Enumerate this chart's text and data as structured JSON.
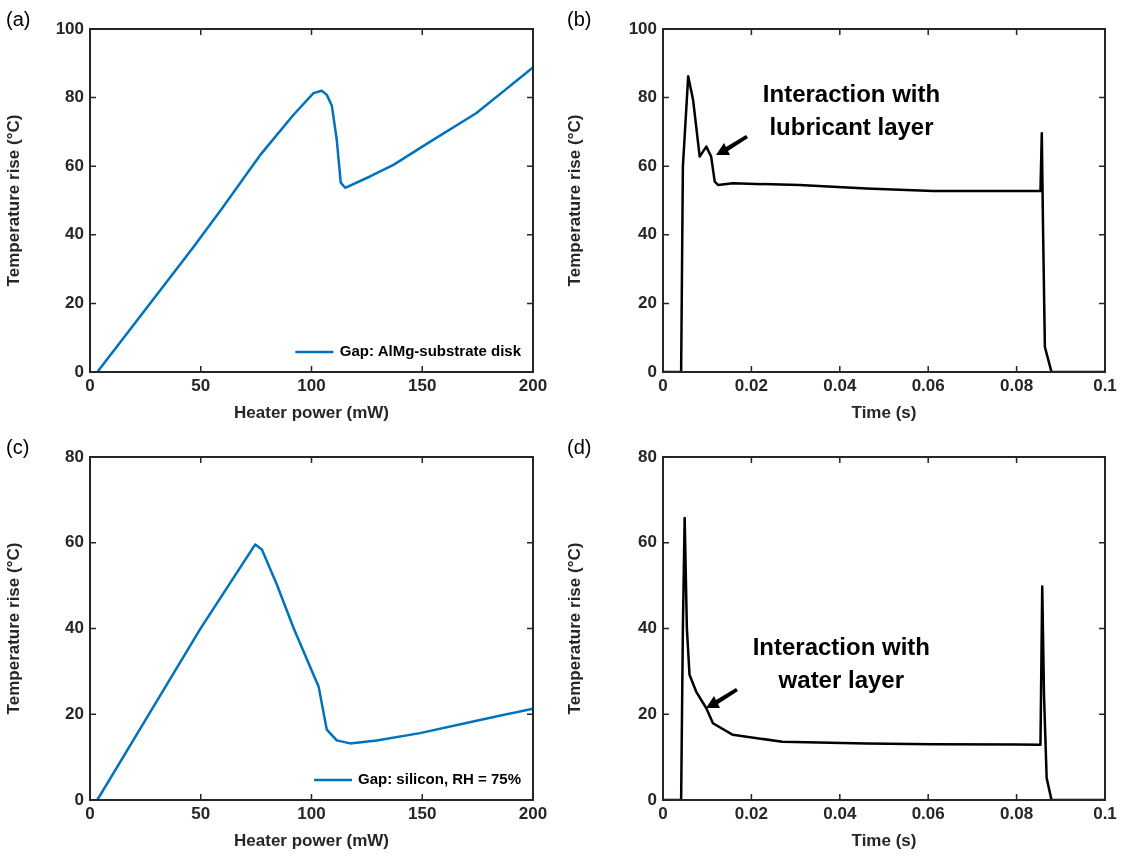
{
  "chart_data": [
    {
      "type": "line",
      "title": "(a)",
      "xlabel": "Heater power (mW)",
      "ylabel": "Temperature rise (°C)",
      "legend": "bottom right",
      "grid": false,
      "x": [
        3.3,
        20,
        46.8,
        60,
        76.9,
        91.9,
        100.9,
        104.6,
        106.9,
        109.2,
        111.4,
        113.2,
        115.2,
        126.4,
        137,
        152,
        174.5,
        200
      ],
      "series": [
        {
          "name": "Gap: AlMg-substrate disk",
          "color": "#0072bd",
          "values": [
            0,
            14,
            36.5,
            48,
            63.3,
            75,
            81.3,
            82,
            80.8,
            77.6,
            67.7,
            55.2,
            53.7,
            57,
            60.4,
            66.5,
            75.5,
            88.8
          ]
        }
      ],
      "xlim": [
        0,
        200
      ],
      "xticks": [
        0,
        50,
        100,
        150,
        200
      ],
      "ylim": [
        0,
        100
      ],
      "yticks": [
        0,
        20,
        40,
        60,
        80,
        100
      ]
    },
    {
      "type": "line",
      "title": "(b)",
      "xlabel": "Time (s)",
      "ylabel": "Temperature rise (°C)",
      "grid": false,
      "x": [
        0,
        0.0041,
        0.0045,
        0.0057,
        0.0068,
        0.0083,
        0.0098,
        0.0109,
        0.0117,
        0.0125,
        0.0158,
        0.0309,
        0.046,
        0.0611,
        0.0762,
        0.0854,
        0.0857,
        0.086,
        0.0864,
        0.0872,
        0.0879,
        0.1
      ],
      "series": [
        {
          "color": "#000000",
          "values": [
            0,
            0,
            59.9,
            86.2,
            79.4,
            62.8,
            65.7,
            62.8,
            55.5,
            54.5,
            55,
            54.5,
            53.5,
            52.8,
            52.8,
            52.8,
            69.6,
            40.4,
            7.3,
            3.4,
            0,
            0
          ]
        }
      ],
      "xlim": [
        0,
        0.1
      ],
      "xticks": [
        0,
        0.02,
        0.04,
        0.06,
        0.08,
        0.1
      ],
      "ylim": [
        0,
        100
      ],
      "yticks": [
        0,
        20,
        40,
        60,
        80,
        100
      ],
      "annotations": [
        {
          "text": "Interaction with lubricant layer",
          "x": 0.0121,
          "y": 63.3
        }
      ]
    },
    {
      "type": "line",
      "title": "(c)",
      "xlabel": "Heater power (mW)",
      "ylabel": "Temperature rise (°C)",
      "legend": "bottom right",
      "grid": false,
      "x": [
        3.3,
        49.8,
        74.6,
        77.6,
        84.4,
        91.9,
        100.9,
        103.2,
        106.9,
        111.4,
        117.4,
        129.4,
        149,
        174.5,
        200
      ],
      "series": [
        {
          "name": "Gap: silicon, RH = 75%",
          "color": "#0072bd",
          "values": [
            0,
            39.9,
            59.6,
            58.4,
            50.2,
            40.1,
            29.2,
            26.5,
            16.4,
            13.9,
            13.2,
            13.9,
            15.6,
            18.5,
            21.3
          ]
        }
      ],
      "xlim": [
        0,
        200
      ],
      "xticks": [
        0,
        50,
        100,
        150,
        200
      ],
      "ylim": [
        0,
        80
      ],
      "yticks": [
        0,
        20,
        40,
        60,
        80
      ]
    },
    {
      "type": "line",
      "title": "(d)",
      "xlabel": "Time (s)",
      "ylabel": "Temperature rise (°C)",
      "grid": false,
      "x": [
        0,
        0.0041,
        0.0045,
        0.0049,
        0.0054,
        0.006,
        0.0075,
        0.0098,
        0.0113,
        0.0158,
        0.027,
        0.046,
        0.0611,
        0.0854,
        0.0858,
        0.0862,
        0.0868,
        0.0879,
        0.1
      ],
      "series": [
        {
          "color": "#000000",
          "values": [
            0,
            0,
            40.1,
            65.8,
            40.1,
            29.2,
            25.3,
            21.4,
            17.9,
            15.2,
            13.6,
            13.2,
            13,
            12.9,
            49.8,
            24.5,
            5.1,
            0,
            0
          ]
        }
      ],
      "xlim": [
        0,
        0.1
      ],
      "xticks": [
        0,
        0.02,
        0.04,
        0.06,
        0.08,
        0.1
      ],
      "ylim": [
        0,
        80
      ],
      "yticks": [
        0,
        20,
        40,
        60,
        80
      ],
      "annotations": [
        {
          "text": "Interaction with water layer",
          "x": 0.0098,
          "y": 21.4
        }
      ]
    }
  ]
}
